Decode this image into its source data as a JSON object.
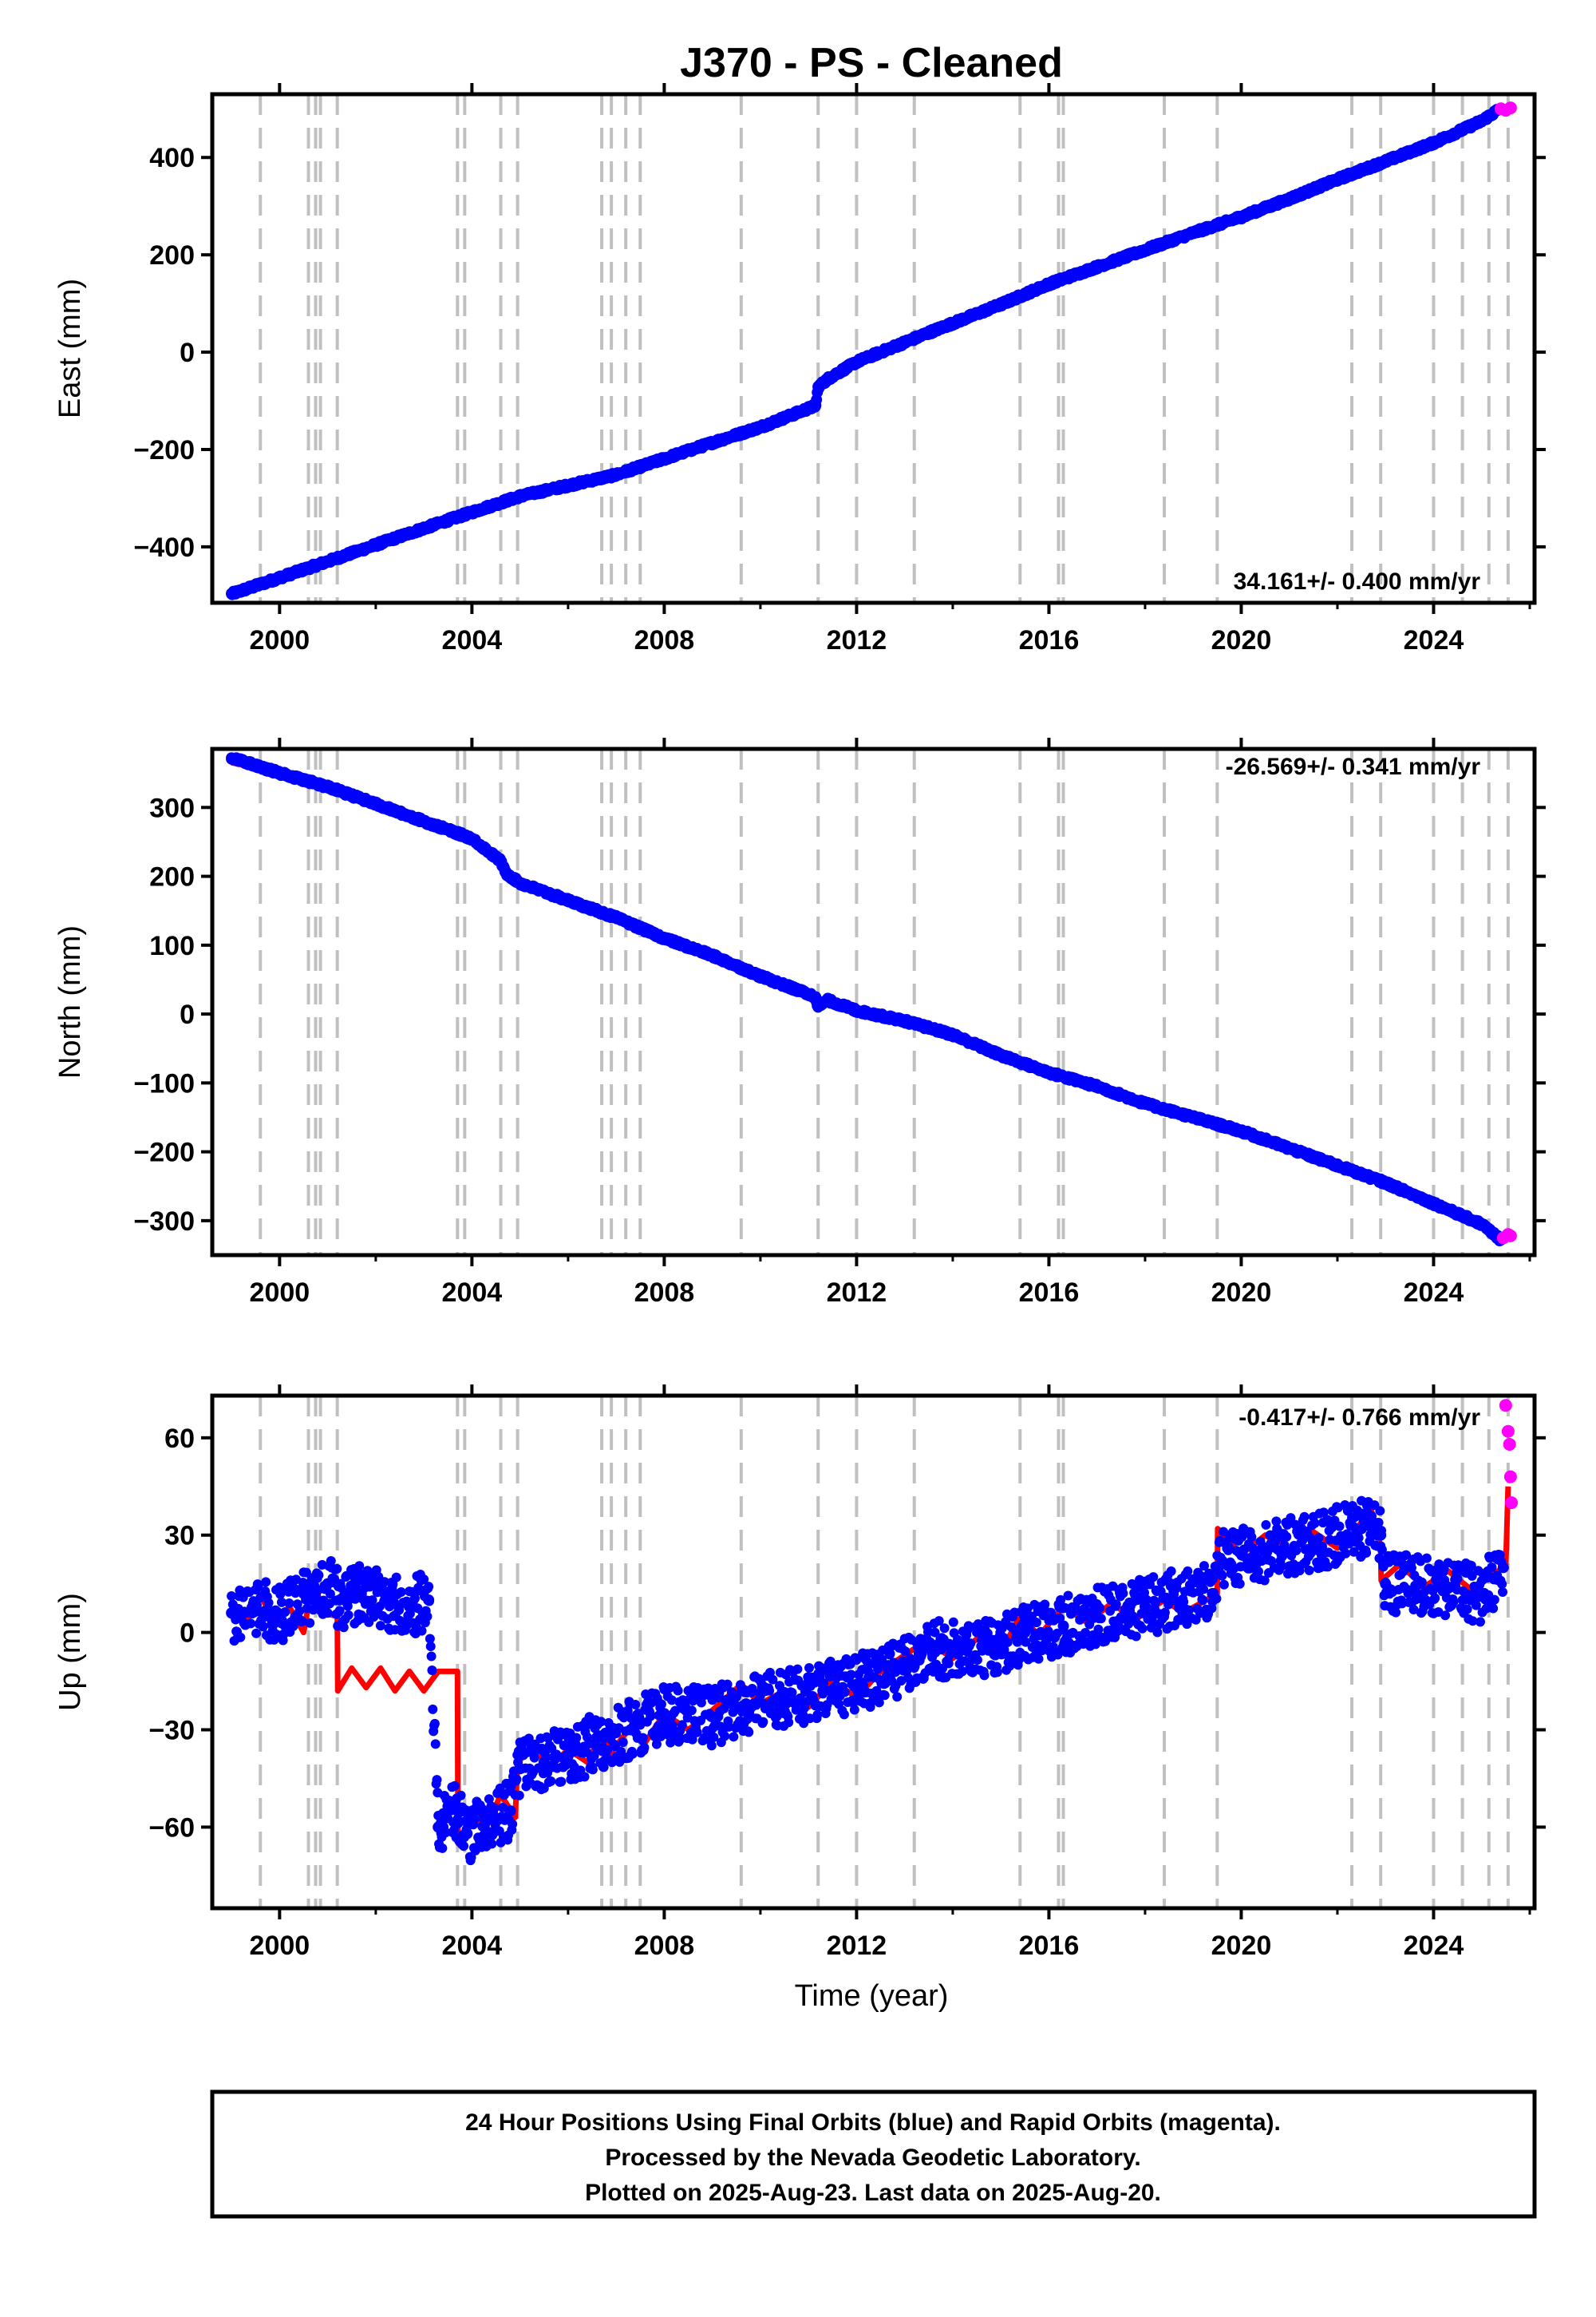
{
  "title": "J370  - PS - Cleaned",
  "xlabel": "Time (year)",
  "footer": {
    "line1": "24 Hour Positions Using Final Orbits (blue) and Rapid Orbits (magenta).",
    "line2": "Processed by the Nevada Geodetic Laboratory.",
    "line3": "Plotted on 2025-Aug-23. Last data on 2025-Aug-20."
  },
  "colors": {
    "final": "#0000ff",
    "rapid": "#ff00ff",
    "model": "#ff0000",
    "event": "#c0c0c0",
    "frame": "#000000"
  },
  "chart_data": [
    {
      "type": "scatter",
      "ylabel": "East (mm)",
      "rate_label": "34.161+/- 0.400 mm/yr",
      "xlim": [
        1998.6,
        2026.1
      ],
      "ylim": [
        -515,
        530
      ],
      "xticks": [
        2000,
        2004,
        2008,
        2012,
        2016,
        2020,
        2024
      ],
      "yticks": [
        -400,
        -200,
        0,
        200,
        400
      ],
      "grid": false,
      "event_lines": [
        1999.6,
        2000.6,
        2000.75,
        2000.85,
        2001.2,
        2003.7,
        2003.85,
        2004.6,
        2004.95,
        2006.7,
        2006.9,
        2007.2,
        2007.5,
        2009.6,
        2011.2,
        2012.0,
        2013.2,
        2015.4,
        2016.2,
        2016.3,
        2018.4,
        2019.5,
        2022.3,
        2022.9,
        2024.0,
        2024.6,
        2025.15,
        2025.55
      ],
      "series": [
        {
          "name": "Final Orbits",
          "style": "points",
          "x": [
            1999.0,
            2001.0,
            2003.0,
            2005.0,
            2007.0,
            2009.0,
            2010.0,
            2011.15,
            2011.2,
            2011.4,
            2012.0,
            2013.5,
            2015.0,
            2016.0,
            2017.0,
            2018.0,
            2019.0,
            2020.0,
            2021.0,
            2022.0,
            2023.0,
            2024.0,
            2025.0,
            2025.35
          ],
          "y": [
            -497,
            -430,
            -362,
            -296,
            -252,
            -186,
            -154,
            -110,
            -72,
            -55,
            -20,
            40,
            98,
            140,
            175,
            210,
            245,
            278,
            315,
            355,
            392,
            430,
            475,
            498
          ]
        },
        {
          "name": "Rapid Orbits",
          "style": "points",
          "x": [
            2025.4,
            2025.5,
            2025.6
          ],
          "y": [
            500,
            497,
            502
          ]
        },
        {
          "name": "Model",
          "style": "line",
          "x": [
            1999.0,
            2001.0,
            2003.0,
            2005.0,
            2007.0,
            2009.0,
            2010.0,
            2011.15,
            2011.2,
            2011.4,
            2012.0,
            2013.5,
            2015.0,
            2016.0,
            2017.0,
            2018.0,
            2019.0,
            2020.0,
            2021.0,
            2022.0,
            2023.0,
            2024.0,
            2025.0,
            2025.35,
            2025.6
          ],
          "y": [
            -497,
            -430,
            -362,
            -296,
            -252,
            -186,
            -154,
            -110,
            -72,
            -55,
            -20,
            40,
            98,
            140,
            175,
            210,
            245,
            278,
            315,
            355,
            392,
            430,
            475,
            498,
            500
          ]
        }
      ]
    },
    {
      "type": "scatter",
      "ylabel": "North (mm)",
      "rate_label": "-26.569+/- 0.341 mm/yr",
      "xlim": [
        1998.6,
        2026.1
      ],
      "ylim": [
        -350,
        385
      ],
      "xticks": [
        2000,
        2004,
        2008,
        2012,
        2016,
        2020,
        2024
      ],
      "yticks": [
        -300,
        -200,
        -100,
        0,
        100,
        200,
        300
      ],
      "grid": false,
      "event_lines": [
        1999.6,
        2000.6,
        2000.75,
        2000.85,
        2001.2,
        2003.7,
        2003.85,
        2004.6,
        2004.95,
        2006.7,
        2006.9,
        2007.2,
        2007.5,
        2009.6,
        2011.2,
        2012.0,
        2013.2,
        2015.4,
        2016.2,
        2016.3,
        2018.4,
        2019.5,
        2022.3,
        2022.9,
        2024.0,
        2024.6,
        2025.15,
        2025.55
      ],
      "series": [
        {
          "name": "Final Orbits",
          "style": "points",
          "x": [
            1999.0,
            2000.0,
            2001.0,
            2002.0,
            2003.0,
            2004.0,
            2004.6,
            2004.7,
            2005.0,
            2006.0,
            2007.0,
            2008.0,
            2009.0,
            2010.0,
            2011.15,
            2011.2,
            2011.4,
            2012.0,
            2013.0,
            2014.0,
            2015.0,
            2016.0,
            2017.0,
            2018.0,
            2019.0,
            2020.0,
            2021.0,
            2022.0,
            2023.0,
            2024.0,
            2025.0,
            2025.4
          ],
          "y": [
            372,
            350,
            330,
            305,
            280,
            255,
            222,
            205,
            190,
            165,
            140,
            110,
            85,
            55,
            25,
            10,
            20,
            5,
            -10,
            -30,
            -60,
            -85,
            -105,
            -130,
            -150,
            -170,
            -195,
            -220,
            -245,
            -275,
            -305,
            -328
          ]
        },
        {
          "name": "Rapid Orbits",
          "style": "points",
          "x": [
            2025.45,
            2025.55,
            2025.6
          ],
          "y": [
            -325,
            -320,
            -322
          ]
        },
        {
          "name": "Model",
          "style": "line",
          "x": [
            1999.0,
            2000.0,
            2001.0,
            2002.0,
            2003.0,
            2004.0,
            2004.6,
            2004.7,
            2005.0,
            2006.0,
            2007.0,
            2008.0,
            2009.0,
            2010.0,
            2011.15,
            2011.2,
            2011.4,
            2012.0,
            2013.0,
            2014.0,
            2015.0,
            2016.0,
            2017.0,
            2018.0,
            2019.0,
            2020.0,
            2021.0,
            2022.0,
            2023.0,
            2024.0,
            2025.0,
            2025.4,
            2025.6
          ],
          "y": [
            365,
            350,
            330,
            305,
            280,
            255,
            222,
            205,
            190,
            165,
            140,
            110,
            85,
            55,
            25,
            10,
            18,
            5,
            -10,
            -30,
            -60,
            -85,
            -105,
            -130,
            -150,
            -170,
            -195,
            -220,
            -245,
            -275,
            -305,
            -328,
            -322
          ]
        }
      ]
    },
    {
      "type": "scatter",
      "ylabel": "Up (mm)",
      "rate_label": "-0.417+/- 0.766 mm/yr",
      "xlim": [
        1998.6,
        2026.1
      ],
      "ylim": [
        -85,
        73
      ],
      "xticks": [
        2000,
        2004,
        2008,
        2012,
        2016,
        2020,
        2024
      ],
      "yticks": [
        -60,
        -30,
        0,
        30,
        60
      ],
      "grid": false,
      "event_lines": [
        1999.6,
        2000.6,
        2000.75,
        2000.85,
        2001.2,
        2003.7,
        2003.85,
        2004.6,
        2004.95,
        2006.7,
        2006.9,
        2007.2,
        2007.5,
        2009.6,
        2011.2,
        2012.0,
        2013.2,
        2015.4,
        2016.2,
        2016.3,
        2018.4,
        2019.5,
        2022.3,
        2022.9,
        2024.0,
        2024.6,
        2025.15,
        2025.55
      ],
      "series": [
        {
          "name": "Final Orbits",
          "style": "points",
          "x": [
            1999.0,
            1999.5,
            2000.0,
            2000.5,
            2000.7,
            2001.0,
            2001.25,
            2001.7,
            2002.2,
            2002.7,
            2003.1,
            2003.3,
            2003.7,
            2003.9,
            2004.3,
            2004.8,
            2005.0,
            2005.5,
            2006.0,
            2006.7,
            2007.3,
            2008.0,
            2009.0,
            2009.7,
            2010.5,
            2011.3,
            2012.0,
            2012.8,
            2013.3,
            2014.0,
            2015.0,
            2015.5,
            2016.3,
            2017.0,
            2018.0,
            2018.5,
            2019.4,
            2019.6,
            2020.5,
            2021.5,
            2022.5,
            2022.9,
            2023.0,
            2023.7,
            2024.3,
            2025.0,
            2025.45
          ],
          "y": [
            6,
            8,
            5,
            12,
            10,
            15,
            10,
            12,
            10,
            8,
            10,
            -60,
            -55,
            -62,
            -58,
            -55,
            -42,
            -40,
            -38,
            -33,
            -30,
            -25,
            -26,
            -22,
            -20,
            -18,
            -16,
            -12,
            -6,
            -5,
            -4,
            0,
            2,
            5,
            8,
            10,
            12,
            22,
            25,
            28,
            32,
            30,
            15,
            15,
            14,
            12,
            20
          ]
        },
        {
          "name": "Rapid Orbits",
          "style": "points",
          "x": [
            2025.5,
            2025.55,
            2025.58,
            2025.6,
            2025.62
          ],
          "y": [
            70,
            62,
            58,
            48,
            40
          ]
        },
        {
          "name": "Model",
          "style": "line",
          "x": [
            1999.0,
            1999.3,
            1999.6,
            1999.9,
            2000.2,
            2000.5,
            2000.7,
            2000.9,
            2001.2,
            2001.21,
            2001.5,
            2001.8,
            2002.1,
            2002.4,
            2002.7,
            2003.0,
            2003.3,
            2003.7,
            2003.71,
            2004.0,
            2004.3,
            2004.6,
            2004.9,
            2004.95,
            2005.3,
            2005.6,
            2006.0,
            2006.4,
            2006.7,
            2006.9,
            2007.3,
            2007.6,
            2008.0,
            2008.5,
            2009.0,
            2009.6,
            2010.0,
            2010.5,
            2011.0,
            2011.5,
            2012.0,
            2012.5,
            2013.2,
            2013.5,
            2014.0,
            2014.5,
            2015.0,
            2015.4,
            2015.8,
            2016.3,
            2016.8,
            2017.3,
            2017.8,
            2018.4,
            2018.8,
            2019.5,
            2019.51,
            2020.0,
            2020.5,
            2021.0,
            2021.5,
            2022.0,
            2022.3,
            2022.7,
            2022.9,
            2022.91,
            2023.3,
            2023.8,
            2024.3,
            2024.8,
            2025.2,
            2025.5,
            2025.55
          ],
          "y": [
            6,
            3,
            12,
            2,
            8,
            0,
            17,
            6,
            5,
            -18,
            -11,
            -17,
            -11,
            -18,
            -12,
            -18,
            -12,
            -12,
            -65,
            -57,
            -60,
            -50,
            -57,
            -40,
            -35,
            -42,
            -36,
            -40,
            -31,
            -37,
            -29,
            -34,
            -25,
            -30,
            -24,
            -16,
            -22,
            -18,
            -23,
            -15,
            -20,
            -12,
            -5,
            -3,
            -8,
            -2,
            -6,
            5,
            -1,
            8,
            3,
            9,
            4,
            10,
            6,
            12,
            32,
            24,
            30,
            25,
            31,
            26,
            30,
            38,
            26,
            16,
            21,
            14,
            19,
            13,
            18,
            20,
            45
          ]
        }
      ]
    }
  ]
}
